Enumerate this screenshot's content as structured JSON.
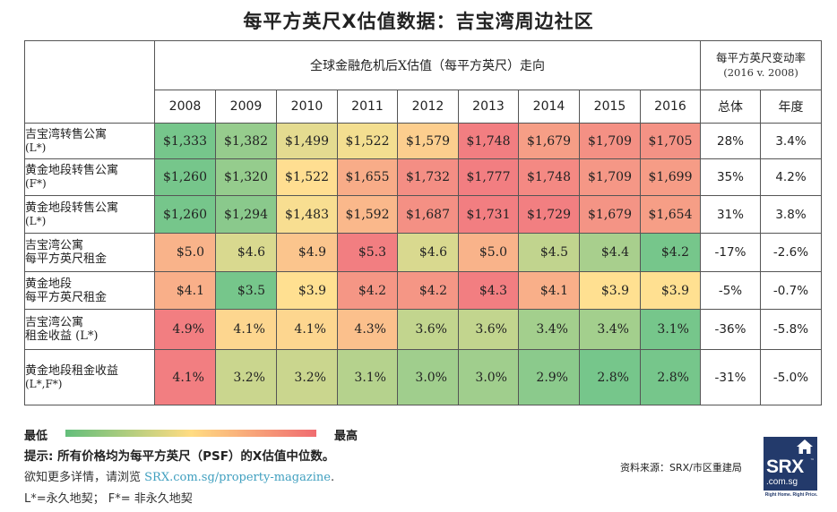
{
  "title": "每平方英尺X估值数据：吉宝湾周边社区",
  "table": {
    "group_header": "全球金融危机后X估值（每平方英尺）走向",
    "change_header": "每平方英尺变动率",
    "change_subheader": "(2016 v. 2008)",
    "change_columns": [
      "总体",
      "年度"
    ]
  },
  "chart_data": {
    "type": "heatmap",
    "title": "每平方英尺X估值数据：吉宝湾周边社区",
    "xlabel": "全球金融危机后X估值（每平方英尺）走向",
    "columns": [
      "2008",
      "2009",
      "2010",
      "2011",
      "2012",
      "2013",
      "2014",
      "2015",
      "2016"
    ],
    "color_scale": {
      "low_label": "最低",
      "high_label": "最高",
      "low_color": "#63be7b",
      "mid_color": "#ffdc82",
      "high_color": "#f06c70",
      "scale": "per-row"
    },
    "rows": [
      {
        "label": "吉宝湾转售公寓",
        "sublabel": "(L*)",
        "format": "dollar_int",
        "values": [
          1333,
          1382,
          1499,
          1522,
          1579,
          1748,
          1679,
          1709,
          1705
        ],
        "display": [
          "$1,333",
          "$1,382",
          "$1,499",
          "$1,522",
          "$1,579",
          "$1,748",
          "$1,679",
          "$1,709",
          "$1,705"
        ],
        "overall": "28%",
        "annual": "3.4%"
      },
      {
        "label": "黄金地段转售公寓",
        "sublabel": "(F*)",
        "format": "dollar_int",
        "values": [
          1260,
          1320,
          1522,
          1655,
          1732,
          1777,
          1748,
          1709,
          1699
        ],
        "display": [
          "$1,260",
          "$1,320",
          "$1,522",
          "$1,655",
          "$1,732",
          "$1,777",
          "$1,748",
          "$1,709",
          "$1,699"
        ],
        "overall": "35%",
        "annual": "4.2%"
      },
      {
        "label": "黄金地段转售公寓",
        "sublabel": "(L*)",
        "format": "dollar_int",
        "values": [
          1260,
          1294,
          1483,
          1592,
          1687,
          1731,
          1729,
          1679,
          1654
        ],
        "display": [
          "$1,260",
          "$1,294",
          "$1,483",
          "$1,592",
          "$1,687",
          "$1,731",
          "$1,729",
          "$1,679",
          "$1,654"
        ],
        "overall": "31%",
        "annual": "3.8%"
      },
      {
        "label": "吉宝湾公寓",
        "sublabel": "每平方英尺租金",
        "format": "dollar_dec",
        "values": [
          5.0,
          4.6,
          4.9,
          5.3,
          4.6,
          5.0,
          4.5,
          4.4,
          4.2
        ],
        "display": [
          "$5.0",
          "$4.6",
          "$4.9",
          "$5.3",
          "$4.6",
          "$5.0",
          "$4.5",
          "$4.4",
          "$4.2"
        ],
        "overall": "-17%",
        "annual": "-2.6%"
      },
      {
        "label": "黄金地段",
        "sublabel": "每平方英尺租金",
        "format": "dollar_dec",
        "values": [
          4.1,
          3.5,
          3.9,
          4.2,
          4.2,
          4.3,
          4.1,
          3.9,
          3.9
        ],
        "display": [
          "$4.1",
          "$3.5",
          "$3.9",
          "$4.2",
          "$4.2",
          "$4.3",
          "$4.1",
          "$3.9",
          "$3.9"
        ],
        "overall": "-5%",
        "annual": "-0.7%"
      },
      {
        "label": "吉宝湾公寓",
        "sublabel": "租金收益 (L*)",
        "format": "percent",
        "values": [
          4.9,
          4.1,
          4.1,
          4.3,
          3.6,
          3.6,
          3.4,
          3.4,
          3.1
        ],
        "display": [
          "4.9%",
          "4.1%",
          "4.1%",
          "4.3%",
          "3.6%",
          "3.6%",
          "3.4%",
          "3.4%",
          "3.1%"
        ],
        "overall": "-36%",
        "annual": "-5.8%"
      },
      {
        "label": "黄金地段租金收益",
        "sublabel": "(L*,F*)",
        "format": "percent",
        "values": [
          4.1,
          3.2,
          3.2,
          3.1,
          3.0,
          3.0,
          2.9,
          2.8,
          2.8
        ],
        "display": [
          "4.1%",
          "3.2%",
          "3.2%",
          "3.1%",
          "3.0%",
          "3.0%",
          "2.9%",
          "2.8%",
          "2.8%"
        ],
        "overall": "-31%",
        "annual": "-5.0%"
      }
    ]
  },
  "legend": {
    "low": "最低",
    "high": "最高"
  },
  "notes": {
    "tip": "提示: 所有价格均为每平方英尺（PSF）的X估值中位数。",
    "more_info_prefix": "欲知更多详情，请浏览 ",
    "more_info_link": "SRX.com.sg/property-magazine",
    "more_info_suffix": ".",
    "tenure": "L*=永久地契；  F*= 非永久地契"
  },
  "source": "资料来源：SRX/市区重建局",
  "logo": {
    "main": "SRX",
    "domain": ".com.sg",
    "tm": "™",
    "tagline": "Right Home. Right Price."
  }
}
